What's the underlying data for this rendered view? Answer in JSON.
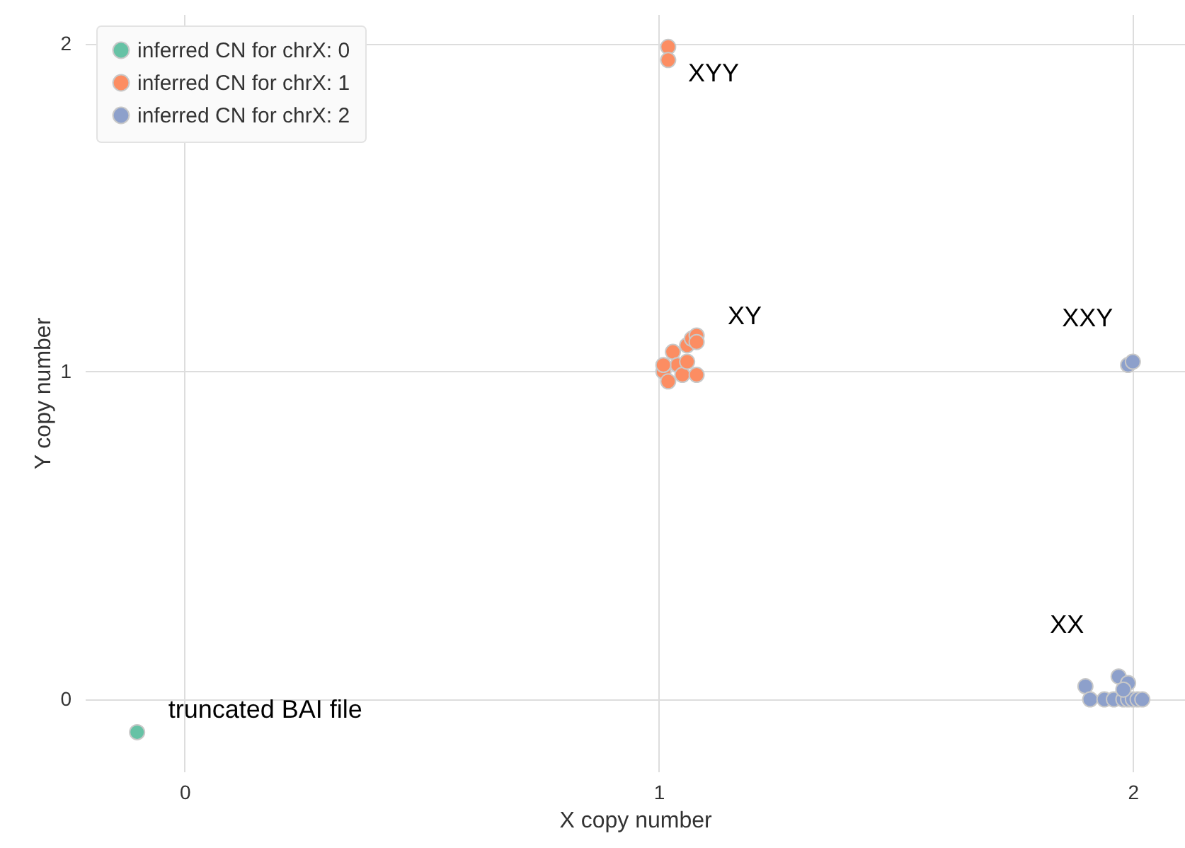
{
  "chart_data": {
    "type": "scatter",
    "xlabel": "X copy number",
    "ylabel": "Y copy number",
    "xlim": [
      -0.21,
      2.11
    ],
    "ylim": [
      -0.22,
      2.09
    ],
    "xticks": [
      0,
      1,
      2
    ],
    "yticks": [
      0,
      1,
      2
    ],
    "grid": true,
    "legend": "top left",
    "marker": "circle",
    "series": [
      {
        "name": "inferred CN for chrX: 0",
        "color": "#66c2a5",
        "x": [
          -0.1
        ],
        "values": [
          -0.1
        ]
      },
      {
        "name": "inferred CN for chrX: 1",
        "color": "#fc8d62",
        "x": [
          1.02,
          1.02,
          1.01,
          1.02,
          1.03,
          1.04,
          1.05,
          1.06,
          1.07,
          1.08,
          1.08,
          1.06,
          1.08,
          1.01
        ],
        "values": [
          1.99,
          1.95,
          1.0,
          0.97,
          1.06,
          1.02,
          0.99,
          1.08,
          1.1,
          1.11,
          1.09,
          1.03,
          0.99,
          1.02
        ]
      },
      {
        "name": "inferred CN for chrX: 2",
        "color": "#8da0cb",
        "x": [
          1.99,
          2.0,
          1.9,
          1.91,
          1.94,
          1.96,
          1.97,
          1.98,
          1.99,
          1.99,
          2.0,
          2.01,
          2.02,
          1.98
        ],
        "values": [
          1.02,
          1.03,
          0.04,
          0,
          0,
          0,
          0.07,
          0,
          0.05,
          0,
          0,
          0,
          0,
          0.03
        ]
      }
    ],
    "annotations": [
      {
        "text": "XYY",
        "x": 1.02,
        "y": 1.95
      },
      {
        "text": "XY",
        "x": 1.08,
        "y": 1.11
      },
      {
        "text": "XXY",
        "x": 2.0,
        "y": 1.03
      },
      {
        "text": "XX",
        "x": 1.9,
        "y": 0.04
      },
      {
        "text": "truncated BAI file",
        "x": -0.1,
        "y": -0.1
      }
    ]
  }
}
